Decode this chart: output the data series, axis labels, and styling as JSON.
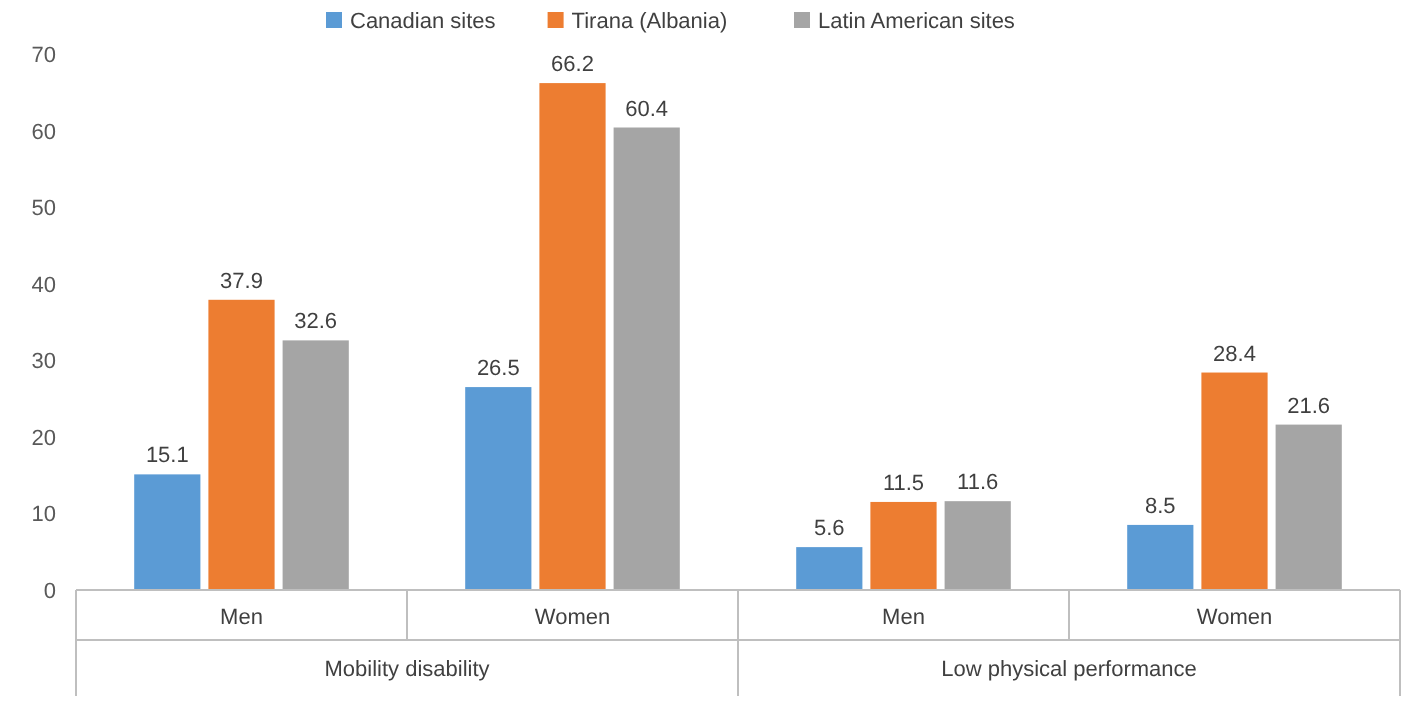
{
  "chart_data": {
    "type": "bar",
    "categories": [
      "Men",
      "Women",
      "Men",
      "Women"
    ],
    "series": [
      {
        "name": "Canadian sites",
        "color": "#5b9bd5",
        "values": [
          15.1,
          26.5,
          5.6,
          8.5
        ]
      },
      {
        "name": "Tirana (Albania)",
        "color": "#ed7d31",
        "values": [
          37.9,
          66.2,
          11.5,
          28.4
        ]
      },
      {
        "name": "Latin American sites",
        "color": "#a5a5a5",
        "values": [
          32.6,
          60.4,
          11.6,
          21.6
        ]
      }
    ],
    "annotations": [
      "Mobility disability",
      "Low physical performance"
    ],
    "ylim": [
      0,
      70
    ],
    "yticks": [
      0,
      10,
      20,
      30,
      40,
      50,
      60,
      70
    ],
    "data_labels": true,
    "legend": "top",
    "grid": false
  }
}
